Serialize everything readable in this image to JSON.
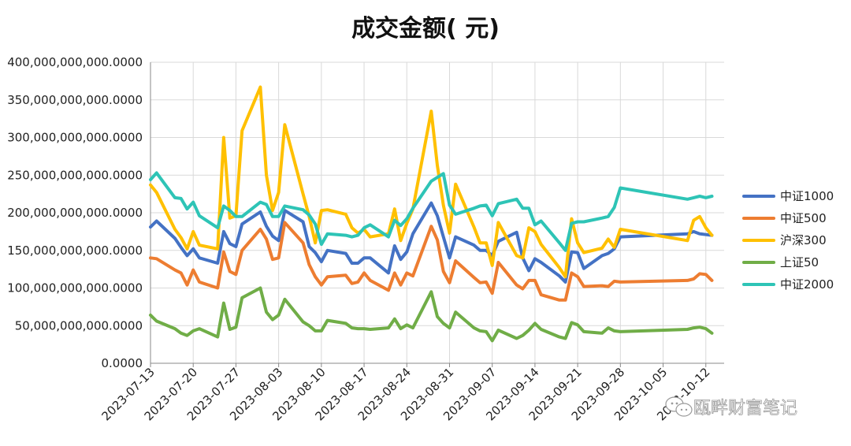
{
  "chart_data": {
    "type": "line",
    "title": "成交金额( 元)",
    "ylim": [
      0,
      400000000000
    ],
    "y_ticks": [
      0,
      50000000000,
      100000000000,
      150000000000,
      200000000000,
      250000000000,
      300000000000,
      350000000000,
      400000000000
    ],
    "y_tick_labels": [
      "0.0000",
      "50,000,000,000.0000",
      "100,000,000,000.0000",
      "150,000,000,000.0000",
      "200,000,000,000.0000",
      "250,000,000,000.0000",
      "300,000,000,000.0000",
      "350,000,000,000.0000",
      "400,000,000,000.0000"
    ],
    "x_tick_labels": [
      "2023-07-13",
      "2023-07-20",
      "2023-07-27",
      "2023-08-03",
      "2023-08-10",
      "2023-08-17",
      "2023-08-24",
      "2023-08-31",
      "2023-09-07",
      "2023-09-14",
      "2023-09-21",
      "2023-09-28",
      "2023-10-05",
      "2023-10-12"
    ],
    "xlim": [
      "2023-07-13",
      "2023-10-15"
    ],
    "grid": true,
    "legend_position": "right",
    "x": [
      "2023-07-13",
      "2023-07-14",
      "2023-07-17",
      "2023-07-18",
      "2023-07-19",
      "2023-07-20",
      "2023-07-21",
      "2023-07-24",
      "2023-07-25",
      "2023-07-26",
      "2023-07-27",
      "2023-07-28",
      "2023-07-31",
      "2023-08-01",
      "2023-08-02",
      "2023-08-03",
      "2023-08-04",
      "2023-08-07",
      "2023-08-08",
      "2023-08-09",
      "2023-08-10",
      "2023-08-11",
      "2023-08-14",
      "2023-08-15",
      "2023-08-16",
      "2023-08-17",
      "2023-08-18",
      "2023-08-21",
      "2023-08-22",
      "2023-08-23",
      "2023-08-24",
      "2023-08-25",
      "2023-08-28",
      "2023-08-29",
      "2023-08-30",
      "2023-08-31",
      "2023-09-01",
      "2023-09-04",
      "2023-09-05",
      "2023-09-06",
      "2023-09-07",
      "2023-09-08",
      "2023-09-11",
      "2023-09-12",
      "2023-09-13",
      "2023-09-14",
      "2023-09-15",
      "2023-09-18",
      "2023-09-19",
      "2023-09-20",
      "2023-09-21",
      "2023-09-22",
      "2023-09-25",
      "2023-09-26",
      "2023-09-27",
      "2023-09-28",
      "2023-10-09",
      "2023-10-10",
      "2023-10-11",
      "2023-10-12",
      "2023-10-13"
    ],
    "series": [
      {
        "name": "中证1000",
        "color": "#4472C4",
        "values": [
          181,
          189,
          166,
          154,
          143,
          152,
          140,
          133,
          175,
          159,
          155,
          185,
          201,
          182,
          169,
          163,
          203,
          188,
          155,
          147,
          135,
          150,
          146,
          133,
          133,
          140,
          140,
          120,
          156,
          138,
          148,
          172,
          213,
          196,
          168,
          140,
          168,
          157,
          150,
          150,
          143,
          162,
          174,
          140,
          123,
          139,
          134,
          116,
          108,
          148,
          147,
          126,
          143,
          146,
          152,
          168,
          172,
          175,
          172,
          171,
          170
        ]
      },
      {
        "name": "中证500",
        "color": "#ED7D31",
        "values": [
          140,
          139,
          124,
          120,
          104,
          124,
          108,
          100,
          148,
          122,
          118,
          150,
          178,
          165,
          138,
          140,
          187,
          160,
          131,
          115,
          104,
          115,
          117,
          106,
          108,
          120,
          110,
          97,
          120,
          104,
          120,
          116,
          182,
          164,
          122,
          107,
          136,
          114,
          107,
          108,
          93,
          134,
          104,
          99,
          110,
          110,
          91,
          84,
          84,
          120,
          115,
          102,
          103,
          102,
          109,
          108,
          110,
          112,
          119,
          118,
          110
        ]
      },
      {
        "name": "沪深300",
        "color": "#FFC000",
        "values": [
          237,
          227,
          178,
          167,
          152,
          175,
          157,
          152,
          300,
          193,
          196,
          309,
          367,
          250,
          203,
          227,
          317,
          225,
          195,
          160,
          203,
          204,
          198,
          180,
          173,
          178,
          168,
          172,
          205,
          163,
          186,
          205,
          335,
          263,
          210,
          173,
          238,
          181,
          160,
          160,
          130,
          187,
          143,
          140,
          180,
          175,
          158,
          127,
          115,
          192,
          160,
          147,
          153,
          165,
          154,
          178,
          163,
          190,
          195,
          180,
          170
        ]
      },
      {
        "name": "上证50",
        "color": "#70AD47",
        "values": [
          64,
          56,
          46,
          40,
          37,
          43,
          46,
          35,
          80,
          45,
          48,
          87,
          100,
          68,
          58,
          64,
          85,
          55,
          50,
          43,
          43,
          57,
          53,
          47,
          46,
          46,
          45,
          47,
          59,
          46,
          51,
          47,
          95,
          62,
          53,
          47,
          68,
          47,
          43,
          42,
          30,
          44,
          33,
          37,
          44,
          53,
          45,
          35,
          33,
          54,
          51,
          42,
          40,
          47,
          43,
          42,
          45,
          47,
          48,
          46,
          40
        ]
      },
      {
        "name": "中证2000",
        "color": "#2EC4B6",
        "values": [
          244,
          253,
          220,
          219,
          205,
          214,
          196,
          180,
          209,
          203,
          195,
          195,
          214,
          211,
          195,
          195,
          209,
          204,
          197,
          185,
          158,
          172,
          170,
          168,
          170,
          180,
          184,
          168,
          190,
          183,
          192,
          206,
          242,
          247,
          252,
          210,
          198,
          206,
          209,
          210,
          196,
          212,
          218,
          206,
          206,
          184,
          189,
          160,
          150,
          186,
          188,
          188,
          193,
          195,
          207,
          233,
          218,
          220,
          222,
          220,
          222
        ]
      }
    ]
  },
  "watermark": {
    "text": "瓯畔财富笔记"
  }
}
